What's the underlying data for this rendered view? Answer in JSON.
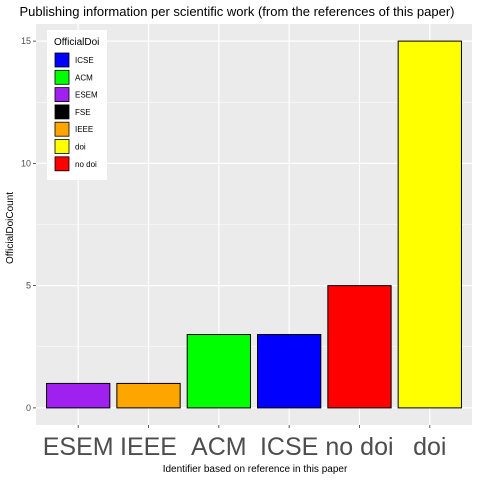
{
  "chart_data": {
    "type": "bar",
    "title": "Publishing information per scientific work (from the references of this paper)",
    "xlabel": "Identifier based on reference in this paper",
    "ylabel": "OfficialDoiCount",
    "categories": [
      "ESEM",
      "IEEE",
      "ACM",
      "ICSE",
      "no doi",
      "doi"
    ],
    "values": [
      1,
      1,
      3,
      3,
      5,
      15
    ],
    "bar_colors": [
      "#a020f0",
      "#ffa500",
      "#00ff00",
      "#0000ff",
      "#ff0000",
      "#ffff00"
    ],
    "yticks": [
      0,
      5,
      10,
      15
    ],
    "ylim": [
      -0.7,
      15.7
    ],
    "grid": true,
    "legend": {
      "title": "OfficialDoi",
      "placement": "top-left",
      "entries": [
        {
          "label": "ICSE",
          "color": "#0000ff"
        },
        {
          "label": "ACM",
          "color": "#00ff00"
        },
        {
          "label": "ESEM",
          "color": "#a020f0"
        },
        {
          "label": "FSE",
          "color": "#000000"
        },
        {
          "label": "IEEE",
          "color": "#ffa500"
        },
        {
          "label": "doi",
          "color": "#ffff00"
        },
        {
          "label": "no doi",
          "color": "#ff0000"
        }
      ]
    }
  },
  "style": {
    "panel_background": "#ebebeb",
    "grid_color": "#ffffff",
    "bar_outline": "#000000"
  }
}
